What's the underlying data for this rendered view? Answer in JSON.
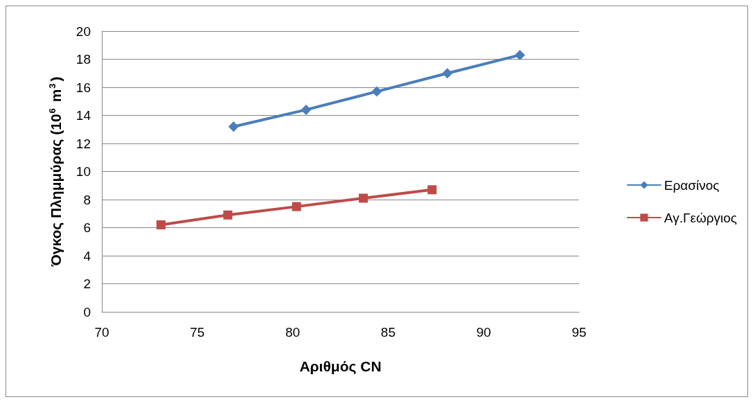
{
  "chart_data": {
    "type": "line",
    "xlabel": "Αριθμός CN",
    "ylabel": "Όγκος Πλημμύρας (10$^{6}$ m$^{3}$)",
    "xlim": [
      70,
      95
    ],
    "xticks": [
      70,
      75,
      80,
      85,
      90,
      95
    ],
    "ylim": [
      0,
      20
    ],
    "yticks": [
      0,
      2,
      4,
      6,
      8,
      10,
      12,
      14,
      16,
      18,
      20
    ],
    "grid": "y",
    "legend": "right",
    "series": [
      {
        "name": "Ερασίνος",
        "color": "#4a7ebb",
        "marker": "diamond",
        "x": [
          76.9,
          80.7,
          84.4,
          88.1,
          91.9
        ],
        "values": [
          13.2,
          14.4,
          15.7,
          17.0,
          18.3
        ]
      },
      {
        "name": "Αγ.Γεώργιος",
        "color": "#be4b48",
        "marker": "square",
        "x": [
          73.1,
          76.6,
          80.2,
          83.7,
          87.3
        ],
        "values": [
          6.2,
          6.9,
          7.5,
          8.1,
          8.7
        ]
      }
    ]
  }
}
